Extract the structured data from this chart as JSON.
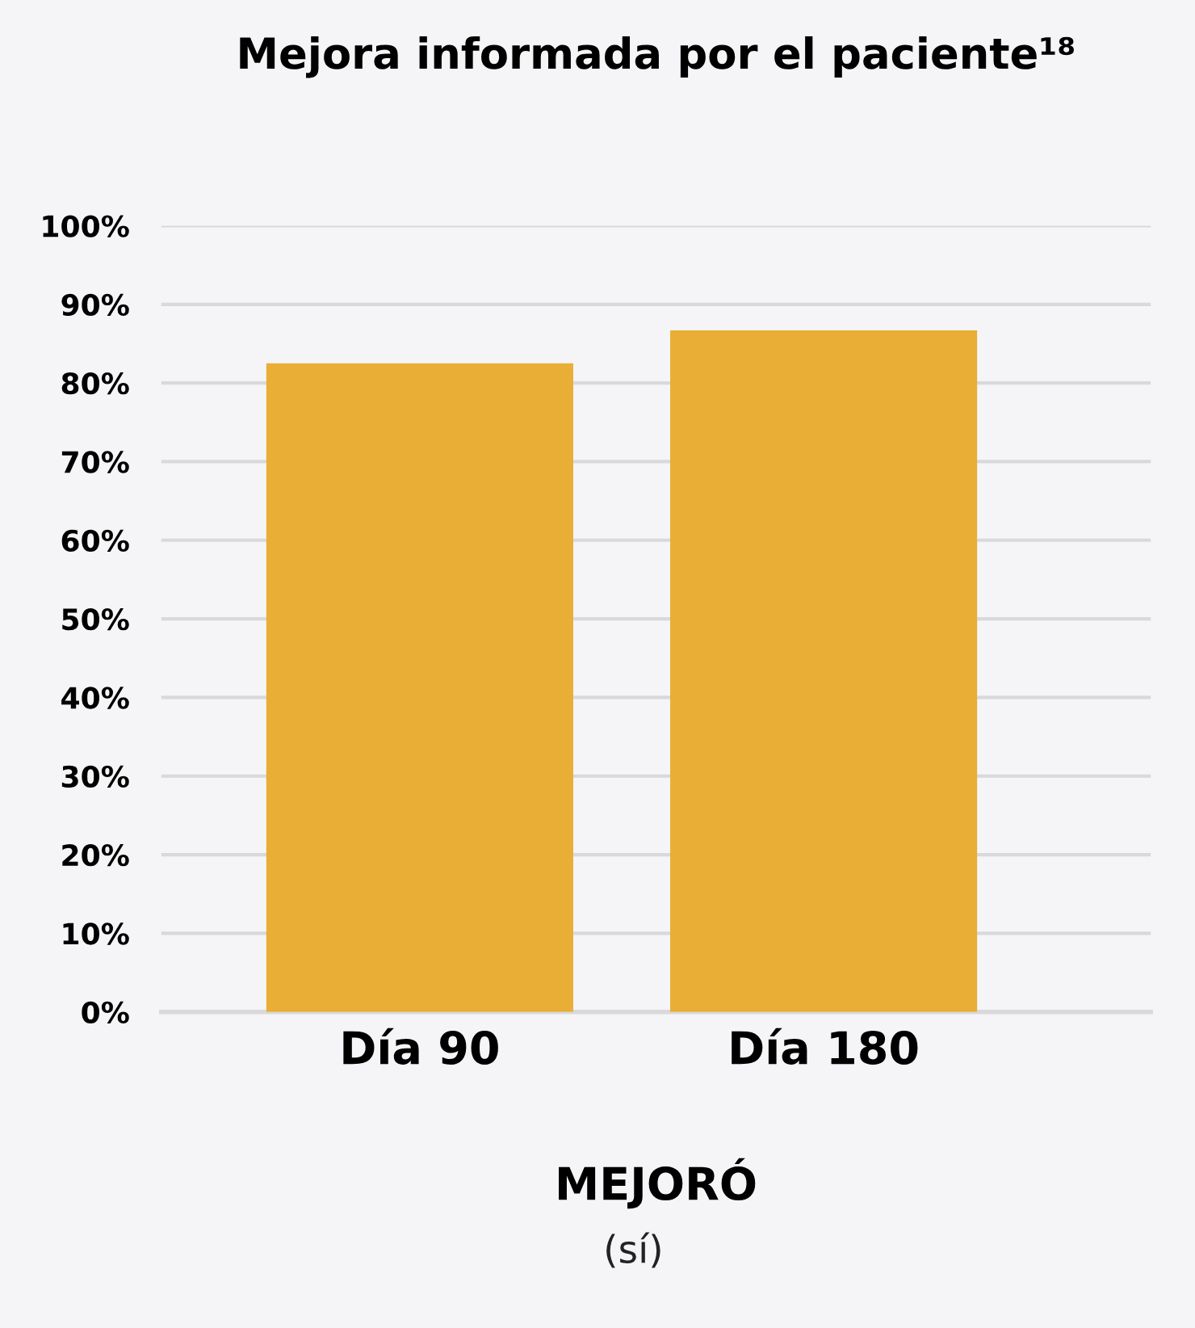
{
  "chart_data": {
    "type": "bar",
    "title": "Mejora informada por el paciente¹⁸",
    "categories": [
      "Día 90",
      "Día 180"
    ],
    "values": [
      82.5,
      86.7
    ],
    "color": "#e8ae35",
    "xlabel": "MEJORÓ",
    "annotations": [
      "(sí)"
    ],
    "ylim": [
      0,
      100
    ],
    "yticks": [
      {
        "value": 0,
        "label": "0%"
      },
      {
        "value": 10,
        "label": "10%"
      },
      {
        "value": 20,
        "label": "20%"
      },
      {
        "value": 30,
        "label": "30%"
      },
      {
        "value": 40,
        "label": "40%"
      },
      {
        "value": 50,
        "label": "50%"
      },
      {
        "value": 60,
        "label": "60%"
      },
      {
        "value": 70,
        "label": "70%"
      },
      {
        "value": 80,
        "label": "80%"
      },
      {
        "value": 90,
        "label": "90%"
      },
      {
        "value": 100,
        "label": "100%"
      }
    ],
    "grid": "y"
  }
}
